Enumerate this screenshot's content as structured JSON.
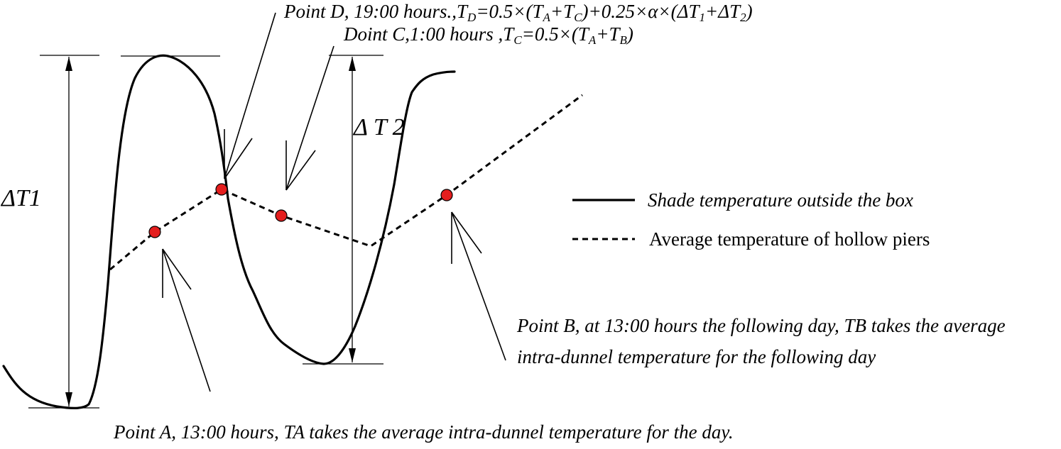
{
  "labels": {
    "dT1": "ΔT1",
    "dT2": "Δ T 2"
  },
  "points": {
    "A": {
      "text": "Point A, 13:00 hours, TA takes the average intra-dunnel temperature for the day."
    },
    "B": {
      "line1": "Point B, at 13:00 hours the following day, TB takes the average",
      "line2": "intra-dunnel temperature for the following day"
    },
    "C": {
      "prefix": "Doint C,1:00 hours ,",
      "tc": "T",
      "tc_sub": "C",
      "eq": "=0.5×(",
      "ta": "T",
      "ta_sub": "A",
      "plus": "+",
      "tb": "T",
      "tb_sub": "B",
      "close": ")"
    },
    "D": {
      "prefix": "Point D, 19:00 hours.,",
      "td": "T",
      "td_sub": "D",
      "eq": "=0.5×(",
      "ta": "T",
      "ta_sub": "A",
      "plus": "+",
      "tc": "T",
      "tc_sub": "C",
      "mid": ")+0.25×α×(",
      "dt1": "ΔT",
      "dt1_sub": "1",
      "plus2": "+",
      "dt2": "ΔT",
      "dt2_sub": "2",
      "close": ")"
    }
  },
  "legend": {
    "solid": "Shade temperature outside the box",
    "dashed": "Average temperature of hollow piers"
  },
  "colors": {
    "point_fill": "#e41e1e",
    "line": "#000000"
  }
}
